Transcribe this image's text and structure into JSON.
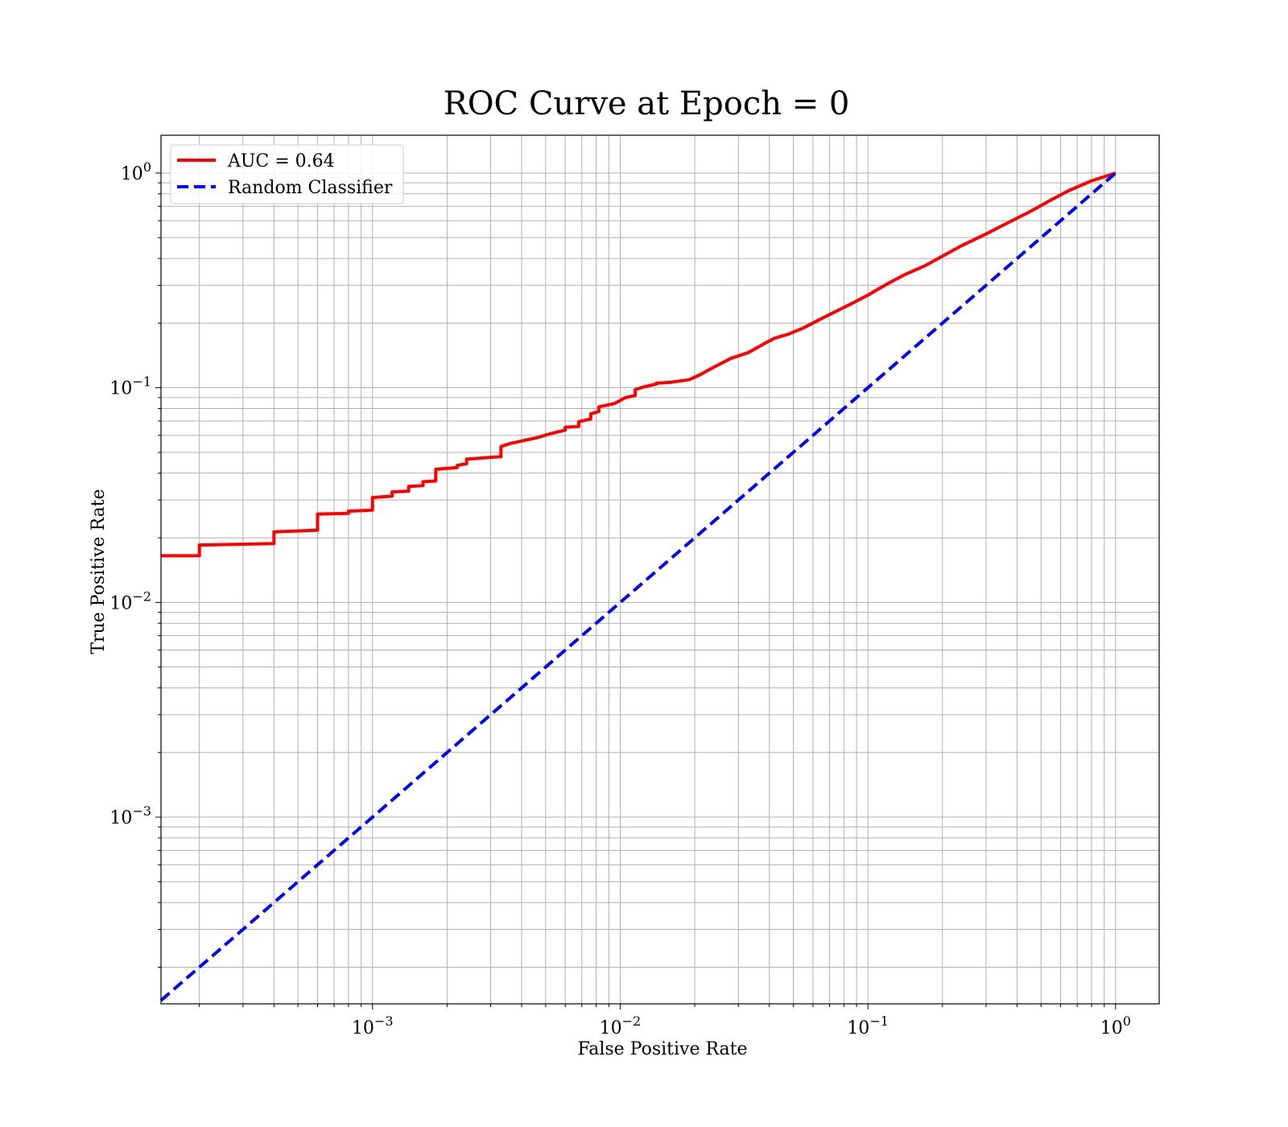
{
  "chart_data": {
    "type": "line",
    "title": "ROC Curve at Epoch = 0",
    "xlabel": "False Positive Rate",
    "ylabel": "True Positive Rate",
    "xscale": "log",
    "yscale": "log",
    "xlim": [
      0.00014,
      1.5
    ],
    "ylim": [
      0.000135,
      1.5
    ],
    "xticks": [
      {
        "value": 0.001,
        "base": "10",
        "exp": "−3"
      },
      {
        "value": 0.01,
        "base": "10",
        "exp": "−2"
      },
      {
        "value": 0.1,
        "base": "10",
        "exp": "−1"
      },
      {
        "value": 1,
        "base": "10",
        "exp": "0"
      }
    ],
    "yticks": [
      {
        "value": 0.001,
        "base": "10",
        "exp": "−3"
      },
      {
        "value": 0.01,
        "base": "10",
        "exp": "−2"
      },
      {
        "value": 0.1,
        "base": "10",
        "exp": "−1"
      },
      {
        "value": 1,
        "base": "10",
        "exp": "0"
      }
    ],
    "grid": true,
    "grid_minor": true,
    "legend_position": "top-left",
    "series": [
      {
        "name": "AUC = 0.64",
        "color": "#ff0000",
        "style": "solid",
        "x": [
          0.00014,
          0.0002,
          0.0002,
          0.0004,
          0.0004,
          0.0006,
          0.0006,
          0.0008,
          0.0008,
          0.001,
          0.001,
          0.0012,
          0.0012,
          0.0014,
          0.0014,
          0.0016,
          0.0016,
          0.0018,
          0.0018,
          0.0022,
          0.0022,
          0.0024,
          0.0024,
          0.0033,
          0.0033,
          0.0036,
          0.004,
          0.0046,
          0.0052,
          0.006,
          0.006,
          0.0068,
          0.0068,
          0.0076,
          0.0076,
          0.0082,
          0.0082,
          0.0095,
          0.0105,
          0.0115,
          0.0115,
          0.0125,
          0.014,
          0.014,
          0.016,
          0.019,
          0.021,
          0.024,
          0.028,
          0.033,
          0.038,
          0.042,
          0.048,
          0.055,
          0.065,
          0.075,
          0.085,
          0.1,
          0.12,
          0.14,
          0.17,
          0.2,
          0.24,
          0.3,
          0.36,
          0.45,
          0.55,
          0.65,
          0.8,
          1.0
        ],
        "y": [
          0.0165,
          0.0165,
          0.0185,
          0.0188,
          0.0213,
          0.0217,
          0.0258,
          0.026,
          0.0266,
          0.0269,
          0.0308,
          0.0313,
          0.0327,
          0.033,
          0.0347,
          0.035,
          0.0365,
          0.0368,
          0.0417,
          0.0425,
          0.0435,
          0.0443,
          0.0465,
          0.0478,
          0.0532,
          0.055,
          0.0565,
          0.0585,
          0.061,
          0.0635,
          0.0655,
          0.066,
          0.0695,
          0.0715,
          0.0755,
          0.0775,
          0.0815,
          0.0845,
          0.09,
          0.092,
          0.098,
          0.101,
          0.104,
          0.105,
          0.106,
          0.109,
          0.115,
          0.125,
          0.137,
          0.146,
          0.16,
          0.17,
          0.178,
          0.19,
          0.21,
          0.228,
          0.245,
          0.27,
          0.305,
          0.335,
          0.37,
          0.41,
          0.46,
          0.52,
          0.58,
          0.66,
          0.75,
          0.83,
          0.92,
          1.0
        ]
      },
      {
        "name": "Random Classifier",
        "color": "#0000ff",
        "style": "dashed",
        "x": [
          0.00014,
          1.0
        ],
        "y": [
          0.00014,
          1.0
        ]
      }
    ]
  }
}
